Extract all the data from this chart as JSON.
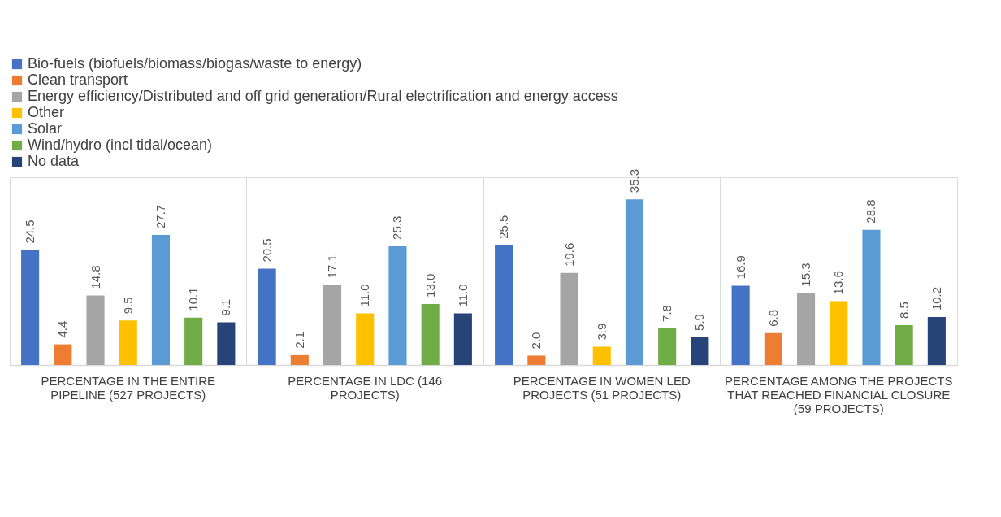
{
  "chart_data": {
    "type": "bar",
    "categories": [
      "PERCENTAGE IN THE ENTIRE PIPELINE (527 PROJECTS)",
      "PERCENTAGE IN LDC (146 PROJECTS)",
      "PERCENTAGE IN WOMEN LED PROJECTS (51 PROJECTS)",
      "PERCENTAGE AMONG THE PROJECTS THAT REACHED FINANCIAL CLOSURE (59 PROJECTS)"
    ],
    "series": [
      {
        "name": "Bio-fuels (biofuels/biomass/biogas/waste to energy)",
        "color": "#4472c4",
        "values": [
          24.5,
          20.5,
          25.5,
          16.9
        ],
        "value_labels": [
          "24.5",
          "20.5",
          "25.5",
          "16.9"
        ]
      },
      {
        "name": "Clean transport",
        "color": "#ed7d31",
        "values": [
          4.4,
          2.1,
          2.0,
          6.8
        ],
        "value_labels": [
          "4.4",
          "2.1",
          "2.0",
          "6.8"
        ]
      },
      {
        "name": "Energy efficiency/Distributed and off grid generation/Rural electrification and energy access",
        "color": "#a5a5a5",
        "values": [
          14.8,
          17.1,
          19.6,
          15.3
        ],
        "value_labels": [
          "14.8",
          "17.1",
          "19.6",
          "15.3"
        ]
      },
      {
        "name": "Other",
        "color": "#ffc000",
        "values": [
          9.5,
          11.0,
          3.9,
          13.6
        ],
        "value_labels": [
          "9.5",
          "11.0",
          "3.9",
          "13.6"
        ]
      },
      {
        "name": "Solar",
        "color": "#5b9bd5",
        "values": [
          27.7,
          25.3,
          35.3,
          28.8
        ],
        "value_labels": [
          "27.7",
          "25.3",
          "35.3",
          "28.8"
        ]
      },
      {
        "name": "Wind/hydro (incl tidal/ocean)",
        "color": "#70ad47",
        "values": [
          10.1,
          13.0,
          7.8,
          8.5
        ],
        "value_labels": [
          "10.1",
          "13.0",
          "7.8",
          "8.5"
        ]
      },
      {
        "name": "No data",
        "color": "#264478",
        "values": [
          9.1,
          11.0,
          5.9,
          10.2
        ],
        "value_labels": [
          "9.1",
          "11.0",
          "5.9",
          "10.2"
        ]
      }
    ],
    "grid": "x",
    "legend": "top",
    "tick_labels": "x"
  }
}
